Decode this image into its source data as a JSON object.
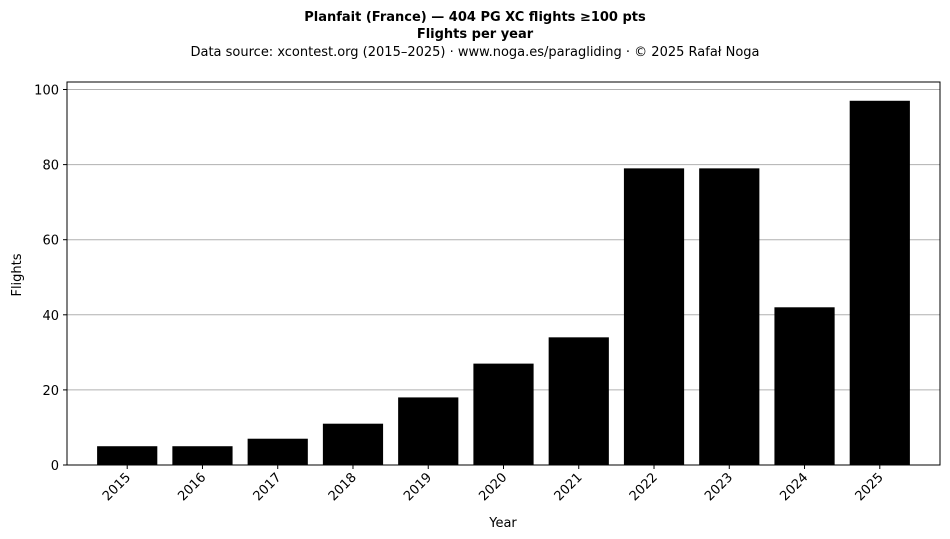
{
  "chart_data": {
    "type": "bar",
    "title_line1": "Planfait (France)  —  404 PG XC flights ≥100 pts",
    "title_line2": "Flights per year",
    "subtitle": "Data source: xcontest.org (2015–2025)  ·  www.noga.es/paragliding  ·  © 2025 Rafał Noga",
    "xlabel": "Year",
    "ylabel": "Flights",
    "categories": [
      "2015",
      "2016",
      "2017",
      "2018",
      "2019",
      "2020",
      "2021",
      "2022",
      "2023",
      "2024",
      "2025"
    ],
    "values": [
      5,
      5,
      7,
      11,
      18,
      27,
      34,
      79,
      79,
      42,
      97
    ],
    "ylim": [
      0,
      102
    ],
    "yticks": [
      0,
      20,
      40,
      60,
      80,
      100
    ],
    "grid": "horizontal",
    "bar_color": "#000000",
    "grid_color": "#b0b0b0",
    "x_tick_rotation": "45° right-aligned"
  }
}
